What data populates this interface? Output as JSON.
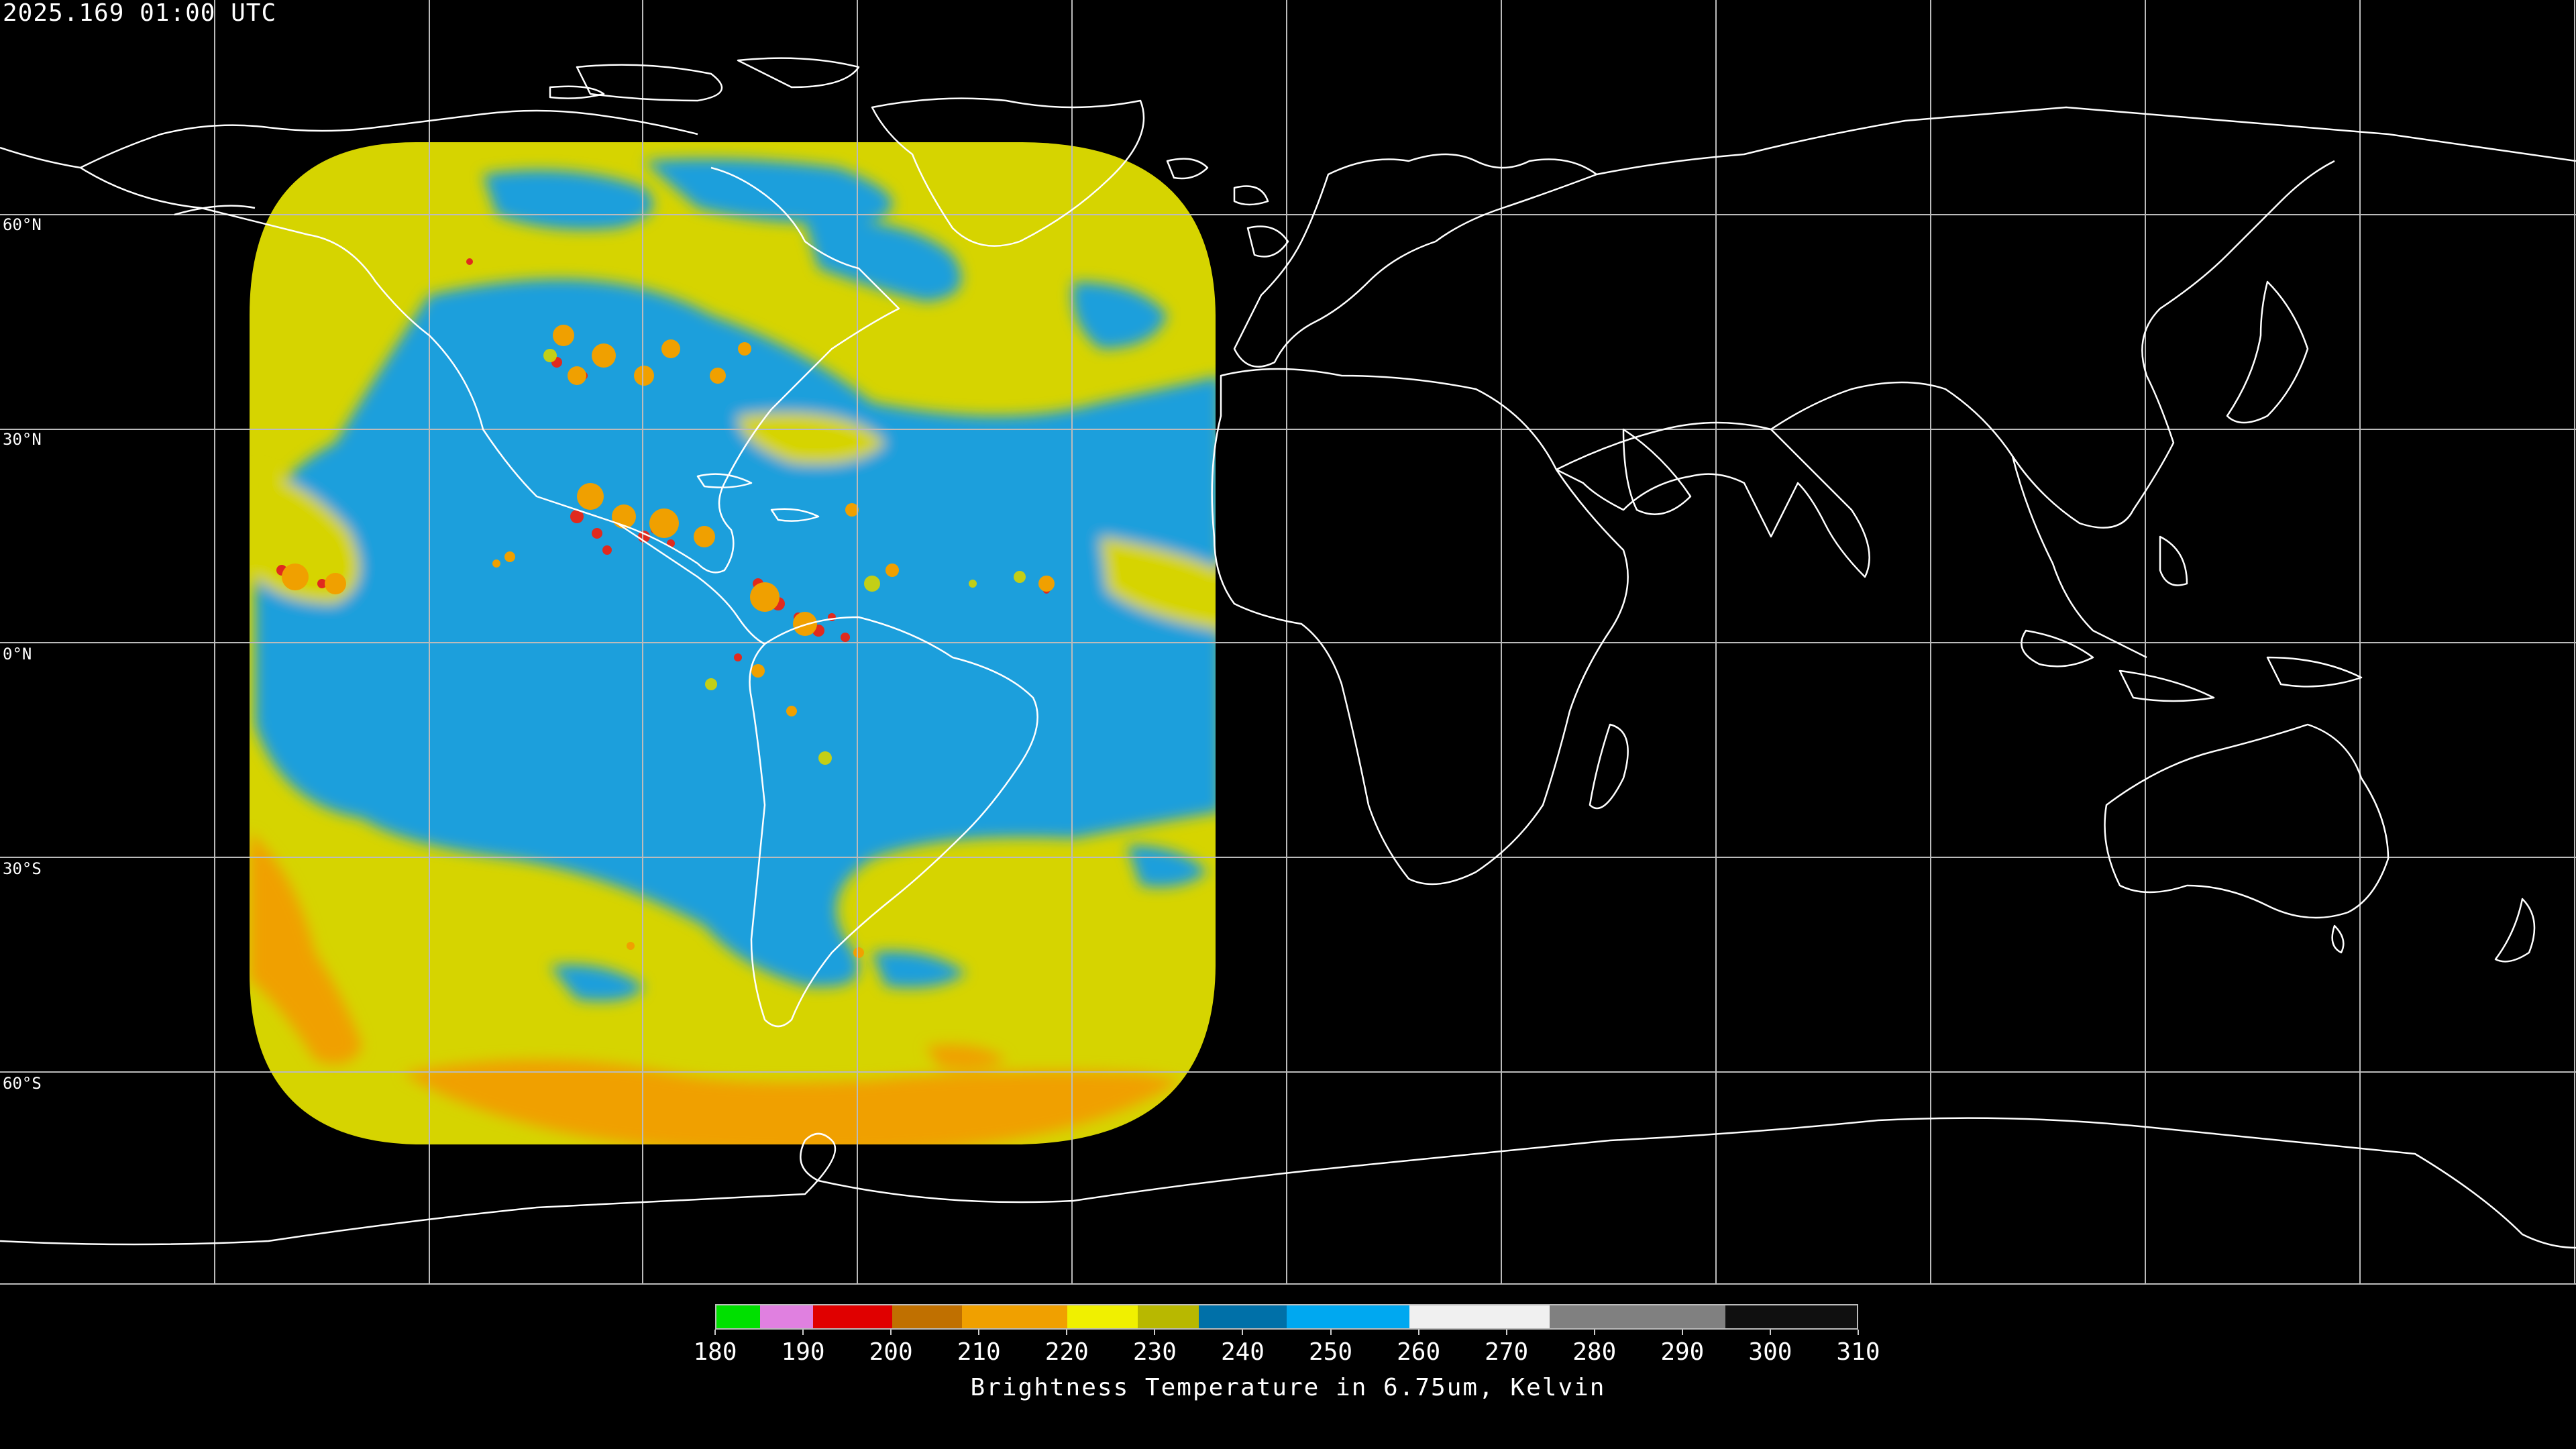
{
  "timestamp": "2025.169 01:00 UTC",
  "lat_labels": [
    "60°N",
    "30°N",
    "0°N",
    "30°S",
    "60°S"
  ],
  "colorbar": {
    "title": "Brightness Temperature in 6.75um, Kelvin",
    "min": 180,
    "max": 310,
    "ticks": [
      "180",
      "190",
      "200",
      "210",
      "220",
      "230",
      "240",
      "250",
      "260",
      "270",
      "280",
      "290",
      "300",
      "310"
    ],
    "segments": [
      {
        "from": 180,
        "to": 185,
        "color": "#00e000"
      },
      {
        "from": 185,
        "to": 191,
        "color": "#e080e0"
      },
      {
        "from": 191,
        "to": 200,
        "color": "#e00000"
      },
      {
        "from": 200,
        "to": 208,
        "color": "#c07000"
      },
      {
        "from": 208,
        "to": 220,
        "color": "#f0a000"
      },
      {
        "from": 220,
        "to": 228,
        "color": "#f0f000"
      },
      {
        "from": 228,
        "to": 235,
        "color": "#b8b800"
      },
      {
        "from": 235,
        "to": 245,
        "color": "#0070a8"
      },
      {
        "from": 245,
        "to": 259,
        "color": "#00a8f0"
      },
      {
        "from": 259,
        "to": 275,
        "color": "#f0f0f0"
      },
      {
        "from": 275,
        "to": 295,
        "color": "#808080"
      },
      {
        "from": 295,
        "to": 310,
        "color": "#101010"
      }
    ]
  },
  "colors": {
    "moist": "#1d9fdc",
    "dry": "#d8d800",
    "very_dry": "#f0a000",
    "cold_top": "#e02020",
    "coastline": "#ffffff",
    "grid": "#bbbbbb"
  }
}
